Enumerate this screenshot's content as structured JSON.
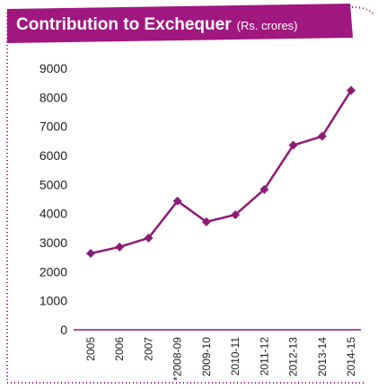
{
  "chart_data": {
    "type": "line",
    "title": "Contribution to Exchequer",
    "subtitle": "(Rs. crores)",
    "categories": [
      "2005",
      "2006",
      "2007",
      "*2008-09",
      "2009-10",
      "2010-11",
      "2011-12",
      "2012-13",
      "2013-14",
      "2014-15"
    ],
    "values": [
      2630,
      2850,
      3160,
      4430,
      3715,
      3960,
      4830,
      6350,
      6660,
      8240
    ],
    "color": "#8e1a78",
    "ylim": [
      0,
      9000
    ],
    "yticks": [
      0,
      1000,
      2000,
      3000,
      4000,
      5000,
      6000,
      7000,
      8000,
      9000
    ],
    "grid": false
  }
}
